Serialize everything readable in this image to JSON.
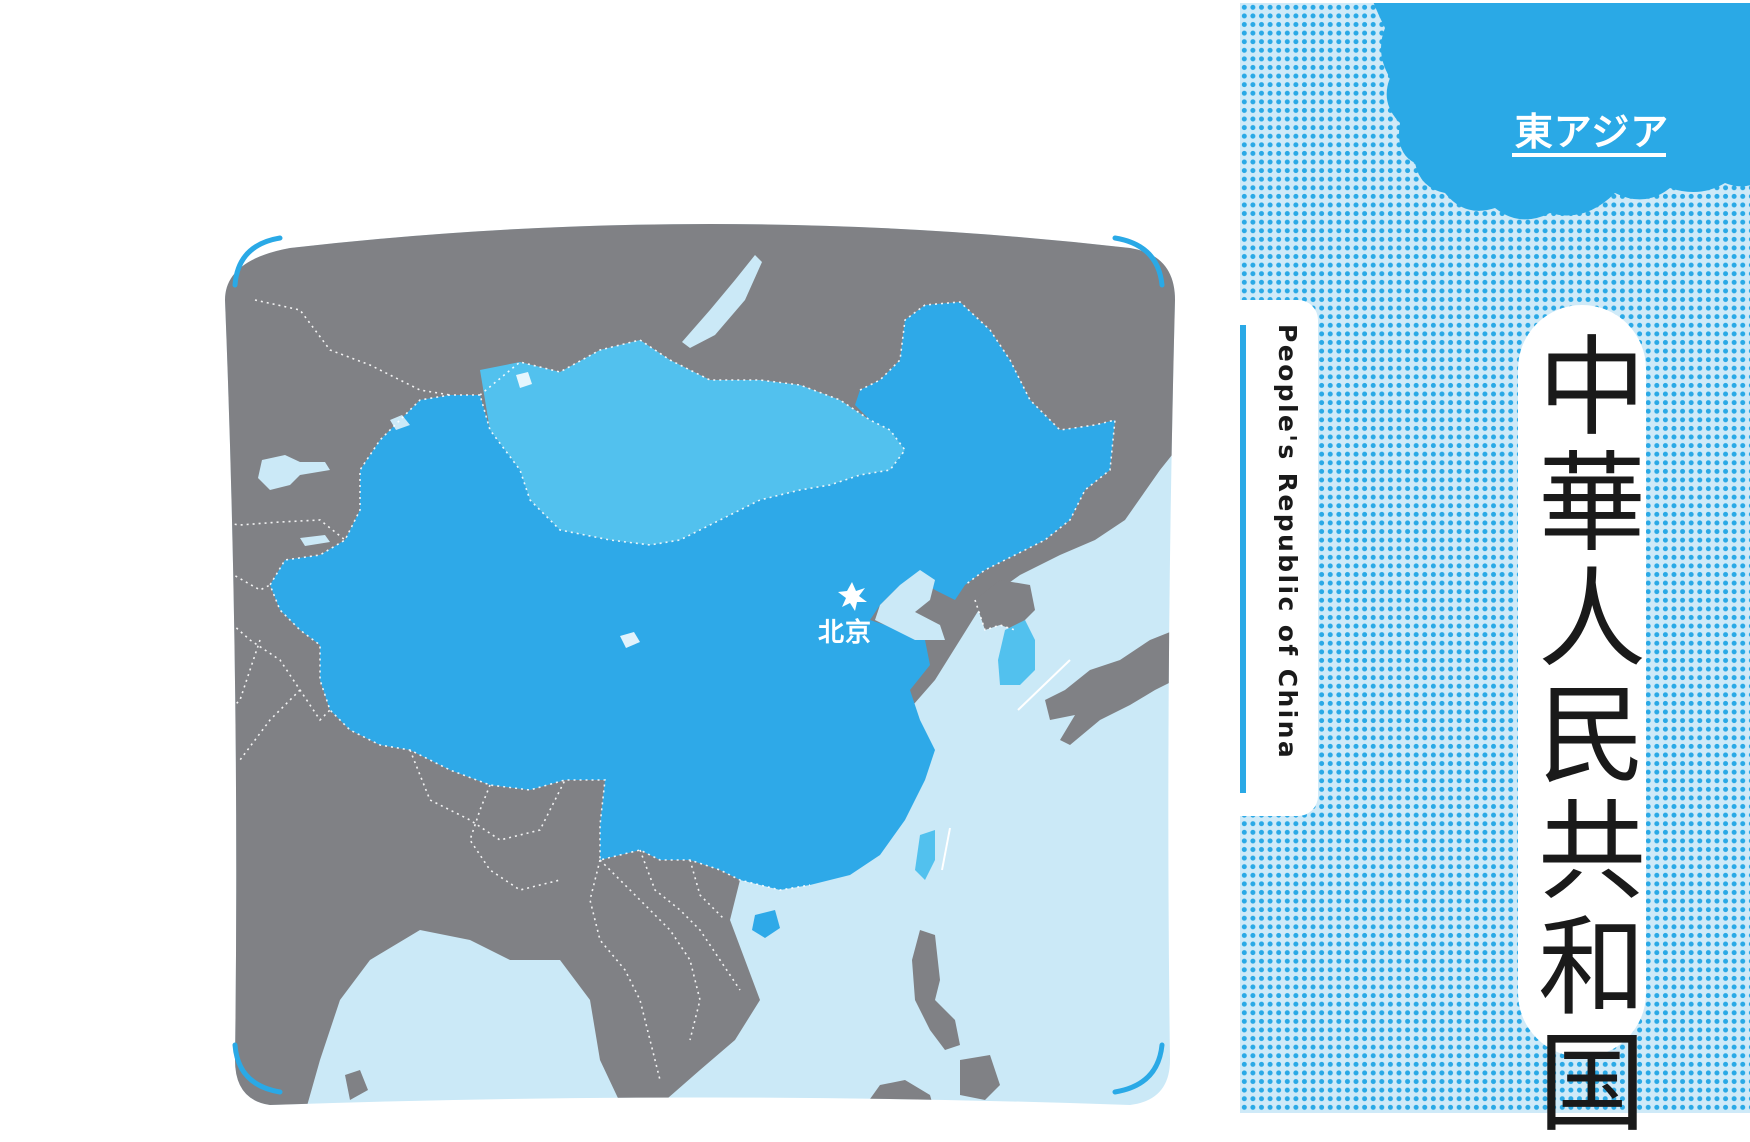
{
  "region": {
    "label": "東アジア"
  },
  "country": {
    "name_ja": "中華人民共和国",
    "name_en": "People's Republic of China"
  },
  "map": {
    "capital": {
      "label": "北京",
      "icon": "capital-star-icon"
    }
  },
  "colors": {
    "highlight_country": "#2ea9e8",
    "neighbor_highlight": "#52c1ee",
    "other_land": "#808185",
    "sea": "#cbe9f7",
    "accent": "#2aa9e6",
    "text_dark": "#1a1a1a"
  }
}
